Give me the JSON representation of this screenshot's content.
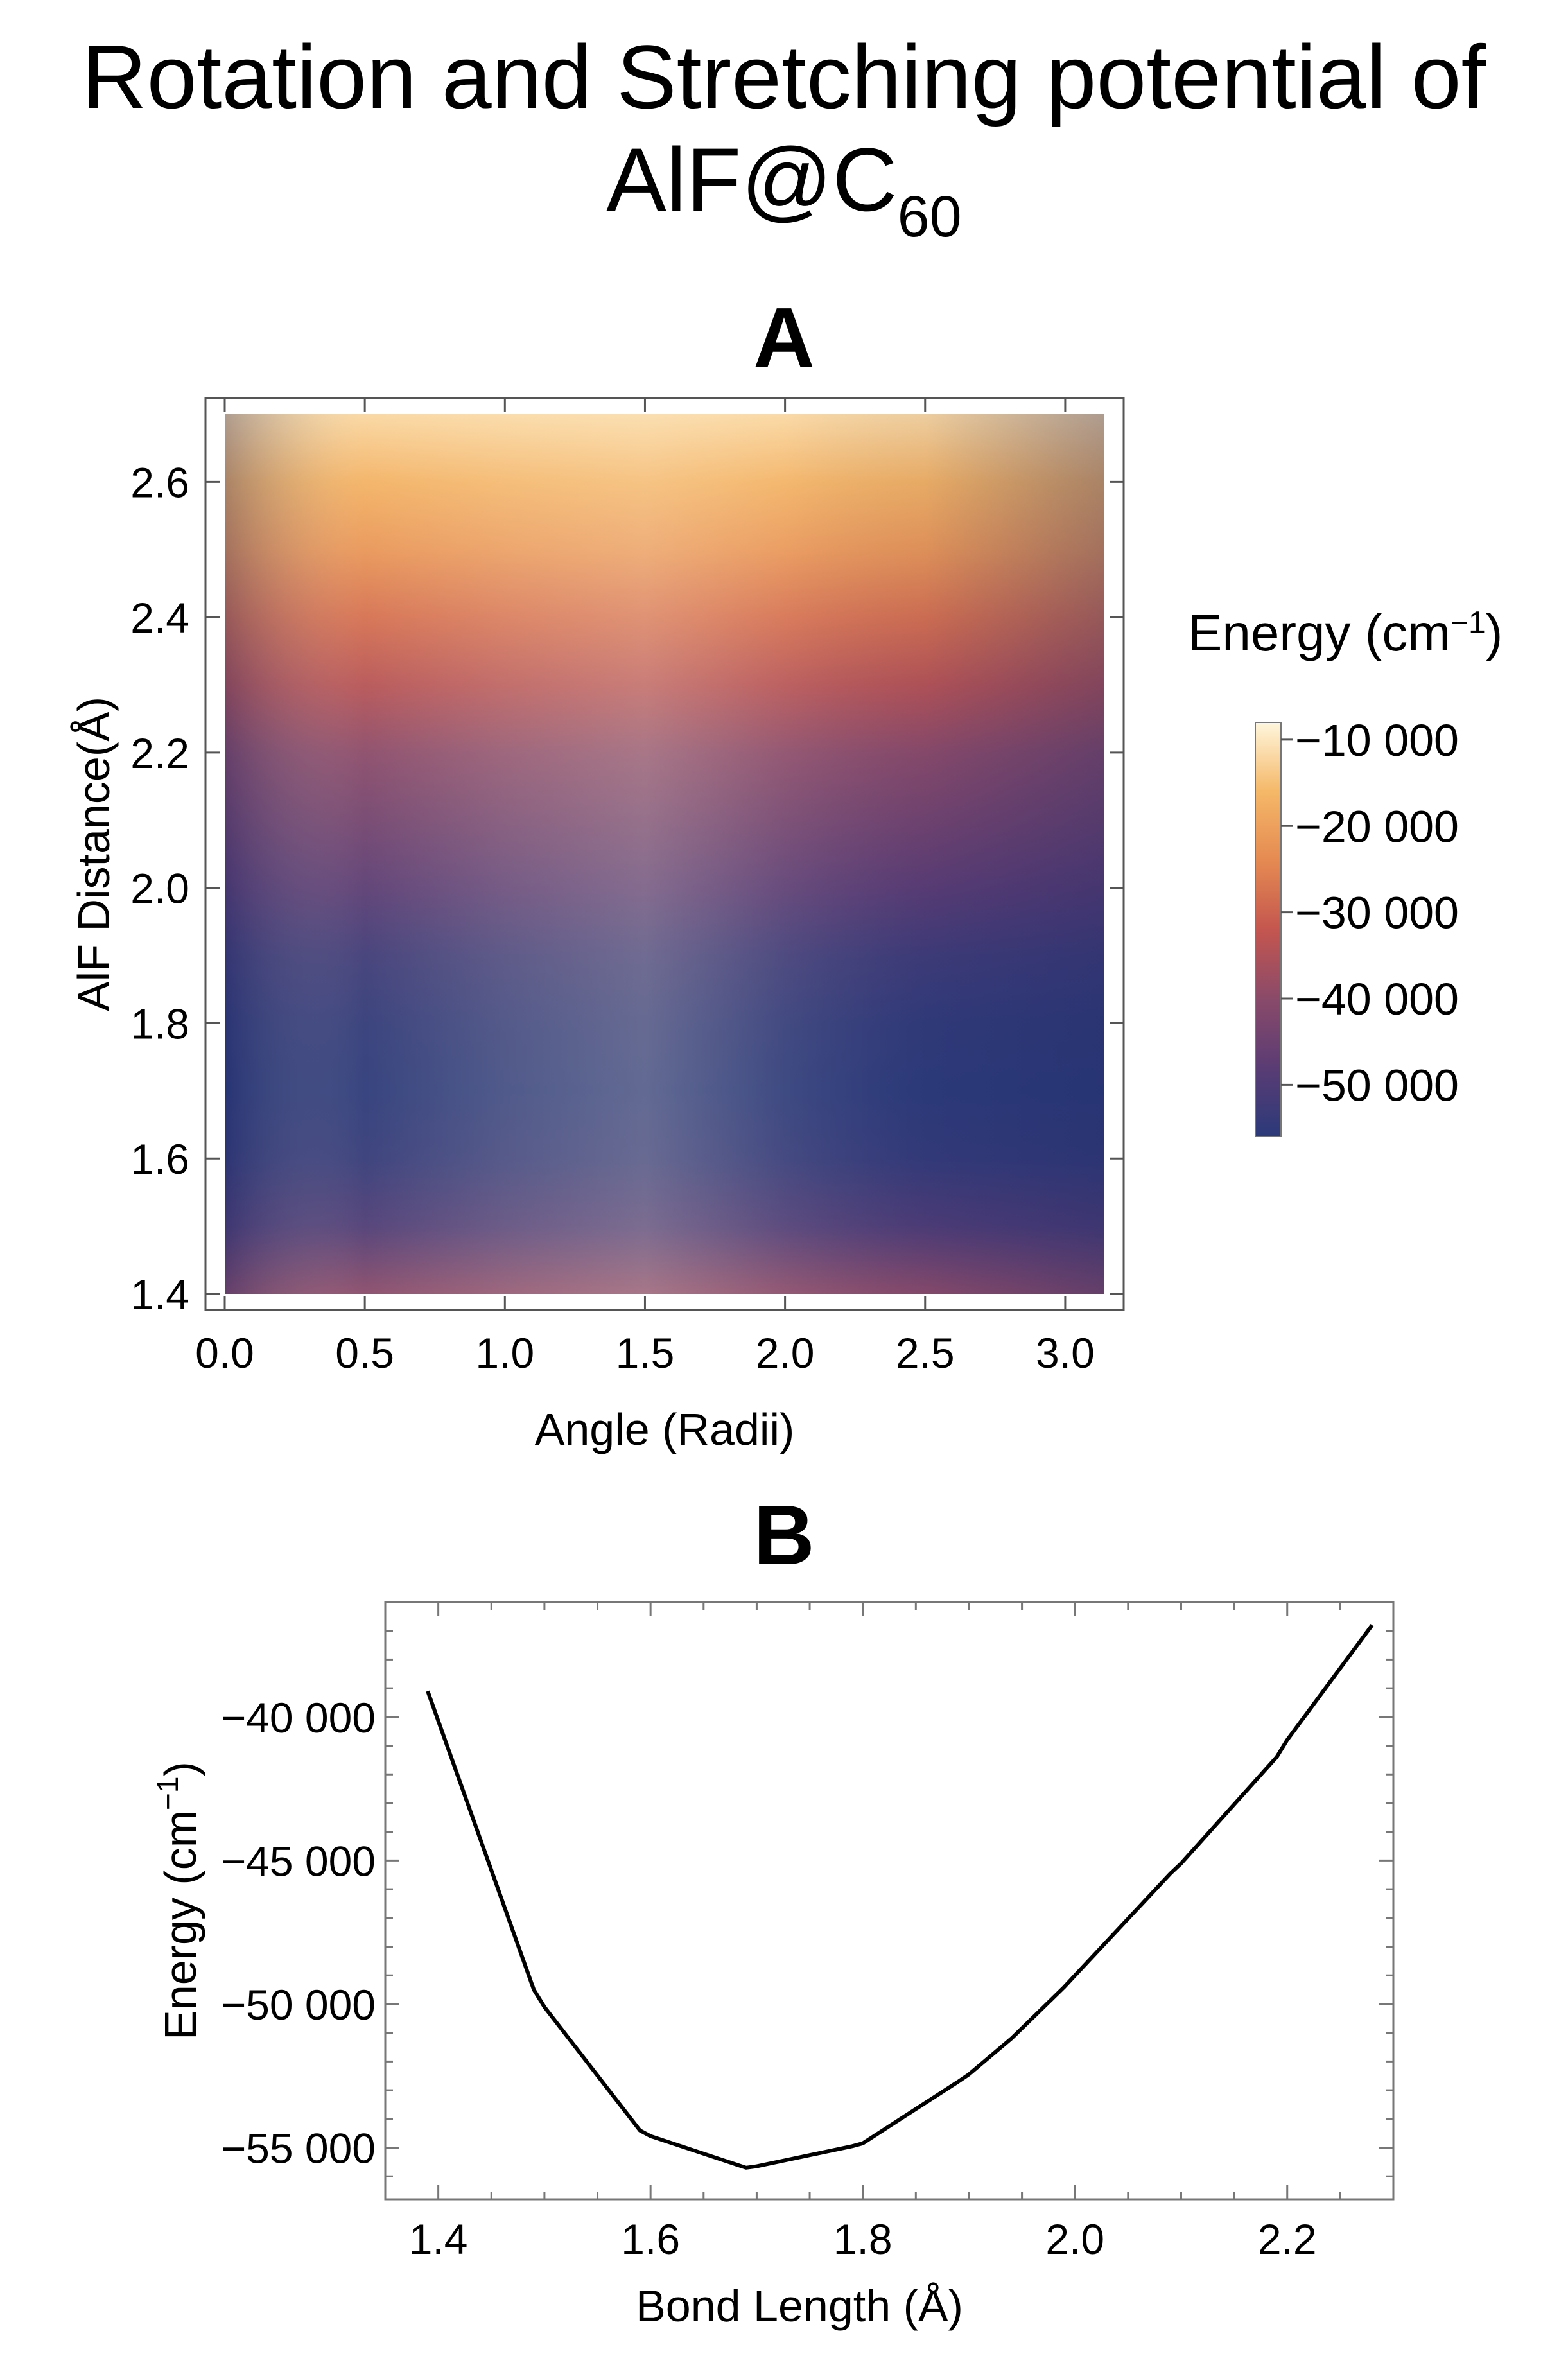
{
  "figure": {
    "title_main": "Rotation and Stretching potential of",
    "title_formula": "AlF@C",
    "title_subscript": "60",
    "panel_a_label": "A",
    "panel_b_label": "B"
  },
  "colors": {
    "colormap": [
      "#2b3a7a",
      "#5a3c74",
      "#8a4a6a",
      "#c4564f",
      "#e58a52",
      "#f5b868",
      "#fff6dc"
    ],
    "line": "#000000"
  },
  "chart_data": [
    {
      "type": "heatmap",
      "xlabel": "Angle (Radii)",
      "ylabel": "AlF Distance(Å)",
      "xlim": [
        0,
        3.14
      ],
      "ylim": [
        1.4,
        2.7
      ],
      "x_ticks": [
        "0.0",
        "0.5",
        "1.0",
        "1.5",
        "2.0",
        "2.5",
        "3.0"
      ],
      "y_ticks": [
        "1.4",
        "1.6",
        "1.8",
        "2.0",
        "2.2",
        "2.4",
        "2.6"
      ],
      "legend_title": "Energy (cm",
      "legend_title_sup": "−1",
      "legend_title_close": ")",
      "colorbar_ticks": [
        "−10 000",
        "−20 000",
        "−30 000",
        "−40 000",
        "−50 000"
      ],
      "colorbar_range": [
        -56000,
        -8000
      ],
      "distance": [
        1.4,
        1.5,
        1.6,
        1.7,
        1.8,
        1.9,
        2.0,
        2.1,
        2.2,
        2.3,
        2.4,
        2.5,
        2.6,
        2.7
      ],
      "energy_profile": [
        -40000,
        -50000,
        -54500,
        -55800,
        -55000,
        -52800,
        -48000,
        -44000,
        -40000,
        -34000,
        -28000,
        -22000,
        -17000,
        -12000
      ],
      "angle_modulation": [
        {
          "angle": 0.0,
          "delta": -1200
        },
        {
          "angle": 0.5,
          "delta": 200
        },
        {
          "angle": 1.0,
          "delta": 600
        },
        {
          "angle": 1.5,
          "delta": 900
        },
        {
          "angle": 2.0,
          "delta": 300
        },
        {
          "angle": 2.5,
          "delta": -200
        },
        {
          "angle": 3.0,
          "delta": -1000
        },
        {
          "angle": 3.14,
          "delta": -1200
        }
      ]
    },
    {
      "type": "line",
      "xlabel": "Bond Length (Å)",
      "ylabel": "Energy (cm",
      "ylabel_sup": "−1",
      "ylabel_close": ")",
      "xlim": [
        1.35,
        2.3
      ],
      "ylim": [
        -56800,
        -36000
      ],
      "x_ticks": [
        "1.4",
        "1.6",
        "1.8",
        "2.0",
        "2.2"
      ],
      "y_ticks": [
        "−40 000",
        "−45 000",
        "−50 000",
        "−55 000"
      ],
      "x": [
        1.39,
        1.49,
        1.5,
        1.59,
        1.6,
        1.69,
        1.7,
        1.79,
        1.8,
        1.89,
        1.9,
        1.94,
        1.99,
        2.0,
        2.09,
        2.1,
        2.19,
        2.2,
        2.28
      ],
      "y": [
        -39100,
        -49500,
        -50100,
        -54400,
        -54600,
        -55700,
        -55650,
        -54950,
        -54850,
        -52700,
        -52450,
        -51200,
        -49400,
        -49000,
        -45450,
        -45100,
        -41400,
        -40800,
        -36800
      ]
    }
  ]
}
